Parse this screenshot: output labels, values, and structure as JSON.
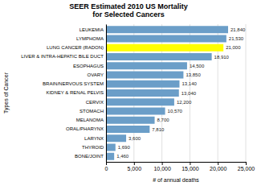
{
  "chart_data": {
    "type": "bar",
    "orientation": "horizontal",
    "title": "SEER Estimated 2010 US Mortality\nfor Selected Cancers",
    "xlabel": "# of annual deaths",
    "ylabel": "Types of Cancer",
    "categories": [
      "BONE/JOINT",
      "THYROID",
      "LARYNX",
      "ORAL/PHARYNX",
      "MELANOMA",
      "STOMACH",
      "CERVIX",
      "KIDNEY & RENAL PELVIS",
      "BRAIN/NERVOUS SYSTEM",
      "OVARY",
      "ESOPHAGUS",
      "LIVER & INTRA-HEPATIC BILE DUCT",
      "LUNG CANCER (RADON)",
      "LYMPHOMA",
      "LEUKEMIA"
    ],
    "values": [
      1460,
      1690,
      3600,
      7810,
      8700,
      10570,
      12200,
      13040,
      13140,
      13850,
      14500,
      18910,
      21000,
      21530,
      21840
    ],
    "value_labels": [
      "1,460",
      "1,690",
      "3,600",
      "7,810",
      "8,700",
      "10,570",
      "12,200",
      "13,040",
      "13,140",
      "13,850",
      "14,500",
      "18,910",
      "21,000",
      "21,530",
      "21,840"
    ],
    "data_labels": true,
    "colors": [
      "#6b9ec8",
      "#6b9ec8",
      "#6b9ec8",
      "#6b9ec8",
      "#6b9ec8",
      "#6b9ec8",
      "#6b9ec8",
      "#6b9ec8",
      "#6b9ec8",
      "#6b9ec8",
      "#6b9ec8",
      "#6b9ec8",
      "#ffff00",
      "#6b9ec8",
      "#6b9ec8"
    ],
    "xlim": [
      0,
      25000
    ],
    "xticks": [
      0,
      {
        "value": 5000,
        "label": "5,000"
      },
      {
        "value": 10000,
        "label": "10,000"
      },
      {
        "value": 15000,
        "label": "15,000"
      },
      {
        "value": 20000,
        "label": "20,000"
      },
      {
        "value": 25000,
        "label": "25,000"
      }
    ],
    "grid": true
  }
}
